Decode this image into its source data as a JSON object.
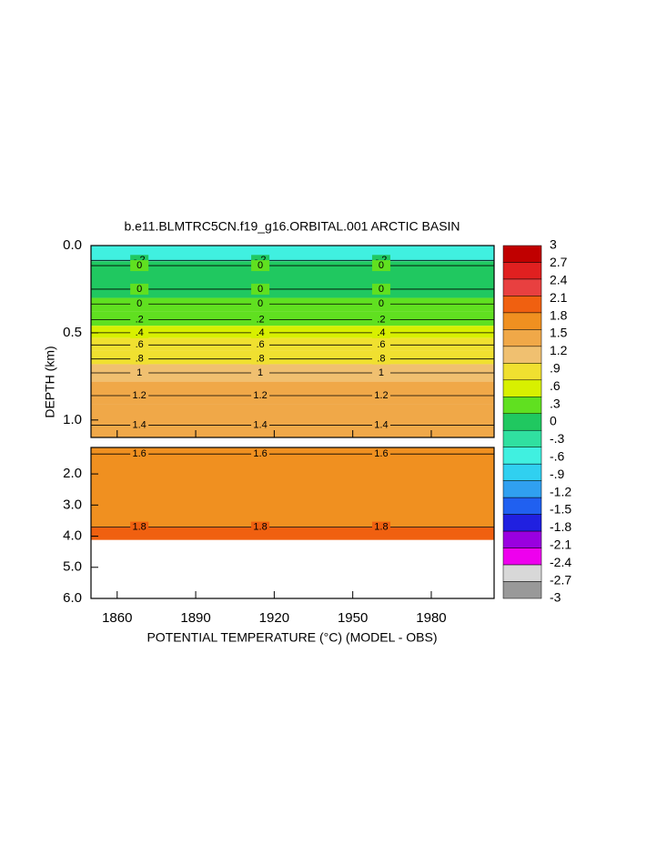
{
  "chart_data": {
    "type": "contour",
    "title": "b.e11.BLMTRC5CN.f19_g16.ORBITAL.001 ARCTIC BASIN",
    "xlabel": "POTENTIAL TEMPERATURE (°C) (MODEL - OBS)",
    "ylabel": "DEPTH (km)",
    "xlim": [
      1850,
      2004
    ],
    "xticks": [
      1860,
      1890,
      1920,
      1950,
      1980
    ],
    "panels": [
      {
        "ylim": [
          0,
          1.1
        ],
        "yticks": [
          {
            "value": 0,
            "label": "0.0"
          },
          {
            "value": 0.5,
            "label": "0.5"
          },
          {
            "value": 1,
            "label": "1.0"
          }
        ]
      },
      {
        "ylim": [
          1.15,
          6
        ],
        "yticks": [
          {
            "value": 2,
            "label": "2.0"
          },
          {
            "value": 3,
            "label": "3.0"
          },
          {
            "value": 4,
            "label": "4.0"
          },
          {
            "value": 5,
            "label": "5.0"
          },
          {
            "value": 6,
            "label": "6.0"
          }
        ]
      }
    ],
    "layers": [
      {
        "depth": [
          0,
          0.09
        ],
        "value": -0.6
      },
      {
        "depth": [
          0.09,
          0.3
        ],
        "value": -0.15
      },
      {
        "depth": [
          0.3,
          0.38
        ],
        "value": 0.1
      },
      {
        "depth": [
          0.38,
          0.46
        ],
        "value": 0.25
      },
      {
        "depth": [
          0.46,
          0.53
        ],
        "value": 0.45
      },
      {
        "depth": [
          0.53,
          0.6
        ],
        "value": 0.7
      },
      {
        "depth": [
          0.6,
          0.68
        ],
        "value": 0.85
      },
      {
        "depth": [
          0.68,
          0.78
        ],
        "value": 1.0
      },
      {
        "depth": [
          0.78,
          0.91
        ],
        "value": 1.3
      },
      {
        "depth": [
          0.91,
          1.1
        ],
        "value": 1.45
      },
      {
        "depth": [
          1.15,
          3.7
        ],
        "value": 1.65
      },
      {
        "depth": [
          3.7,
          4.12
        ],
        "value": 1.9
      }
    ],
    "contours": [
      {
        "value": -0.2,
        "label": "-.2",
        "depth": 0.085
      },
      {
        "value": 0,
        "depth": 0.115
      },
      {
        "value": 0,
        "depth": 0.25
      },
      {
        "value": 0,
        "depth": 0.335
      },
      {
        "value": 0.2,
        "label": ".2",
        "depth": 0.425
      },
      {
        "value": 0.4,
        "label": ".4",
        "depth": 0.5
      },
      {
        "value": 0.6,
        "label": ".6",
        "depth": 0.57
      },
      {
        "value": 0.8,
        "label": ".8",
        "depth": 0.65
      },
      {
        "value": 1,
        "depth": 0.73
      },
      {
        "value": 1.2,
        "depth": 0.86
      },
      {
        "value": 1.4,
        "depth": 1.03
      },
      {
        "value": 1.6,
        "depth": 1.36
      },
      {
        "value": 1.8,
        "depth": 3.71
      }
    ],
    "colorbar": {
      "ticks": [
        3,
        2.7,
        2.4,
        2.1,
        1.8,
        1.5,
        1.2,
        {
          "value": 0.9,
          "label": ".9"
        },
        {
          "value": 0.6,
          "label": ".6"
        },
        {
          "value": 0.3,
          "label": ".3"
        },
        0,
        {
          "value": -0.3,
          "label": "-.3"
        },
        {
          "value": -0.6,
          "label": "-.6"
        },
        {
          "value": -0.9,
          "label": "-.9"
        },
        -1.2,
        -1.5,
        -1.8,
        -2.1,
        -2.4,
        -2.7,
        -3
      ],
      "colors": [
        "#c00000",
        "#e02020",
        "#e84040",
        "#f06010",
        "#f09020",
        "#f0a848",
        "#f0c070",
        "#f0e030",
        "#d8f000",
        "#60e020",
        "#20c860",
        "#30e0a0",
        "#40f0e0",
        "#30d0f0",
        "#30a0f0",
        "#2060f0",
        "#2020e0",
        "#9a00e0",
        "#ee00ee",
        "#d8d8d8",
        "#999999"
      ]
    }
  }
}
